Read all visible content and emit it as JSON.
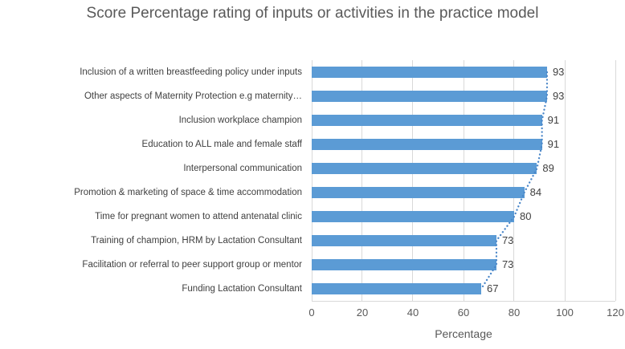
{
  "chart_data": {
    "type": "bar",
    "orientation": "horizontal",
    "title": "Score Percentage rating of inputs or activities in the practice model",
    "categories": [
      "Inclusion of a written breastfeeding policy under inputs",
      "Other aspects of Maternity Protection e.g maternity…",
      "Inclusion workplace champion",
      "Education to ALL male and female staff",
      "Interpersonal communication",
      "Promotion & marketing of space & time accommodation",
      "Time for pregnant women to attend antenatal clinic",
      "Training of champion, HRM by Lactation Consultant",
      "Facilitation or referral to peer support group or mentor",
      "Funding Lactation Consultant"
    ],
    "values": [
      93,
      93,
      91,
      91,
      89,
      84,
      80,
      73,
      73,
      67
    ],
    "data_labels_shown": true,
    "xlabel": "Percentage",
    "xlim": [
      0,
      120
    ],
    "xticks": [
      0,
      20,
      40,
      60,
      80,
      100,
      120
    ],
    "grid": "vertical-gridlines-at-each-xtick",
    "legend": "none",
    "trendline": {
      "style": "dotted",
      "shape": "connects-bar-end-points"
    }
  },
  "colors": {
    "bar": "#5B9BD5",
    "trendline": "#4A86C8",
    "gridline": "#D9D9D9",
    "axis_line": "#D9D9D9",
    "title_text": "#595959",
    "category_text": "#404040",
    "tick_text": "#595959",
    "data_label_text": "#404040",
    "background": "#FFFFFF"
  }
}
